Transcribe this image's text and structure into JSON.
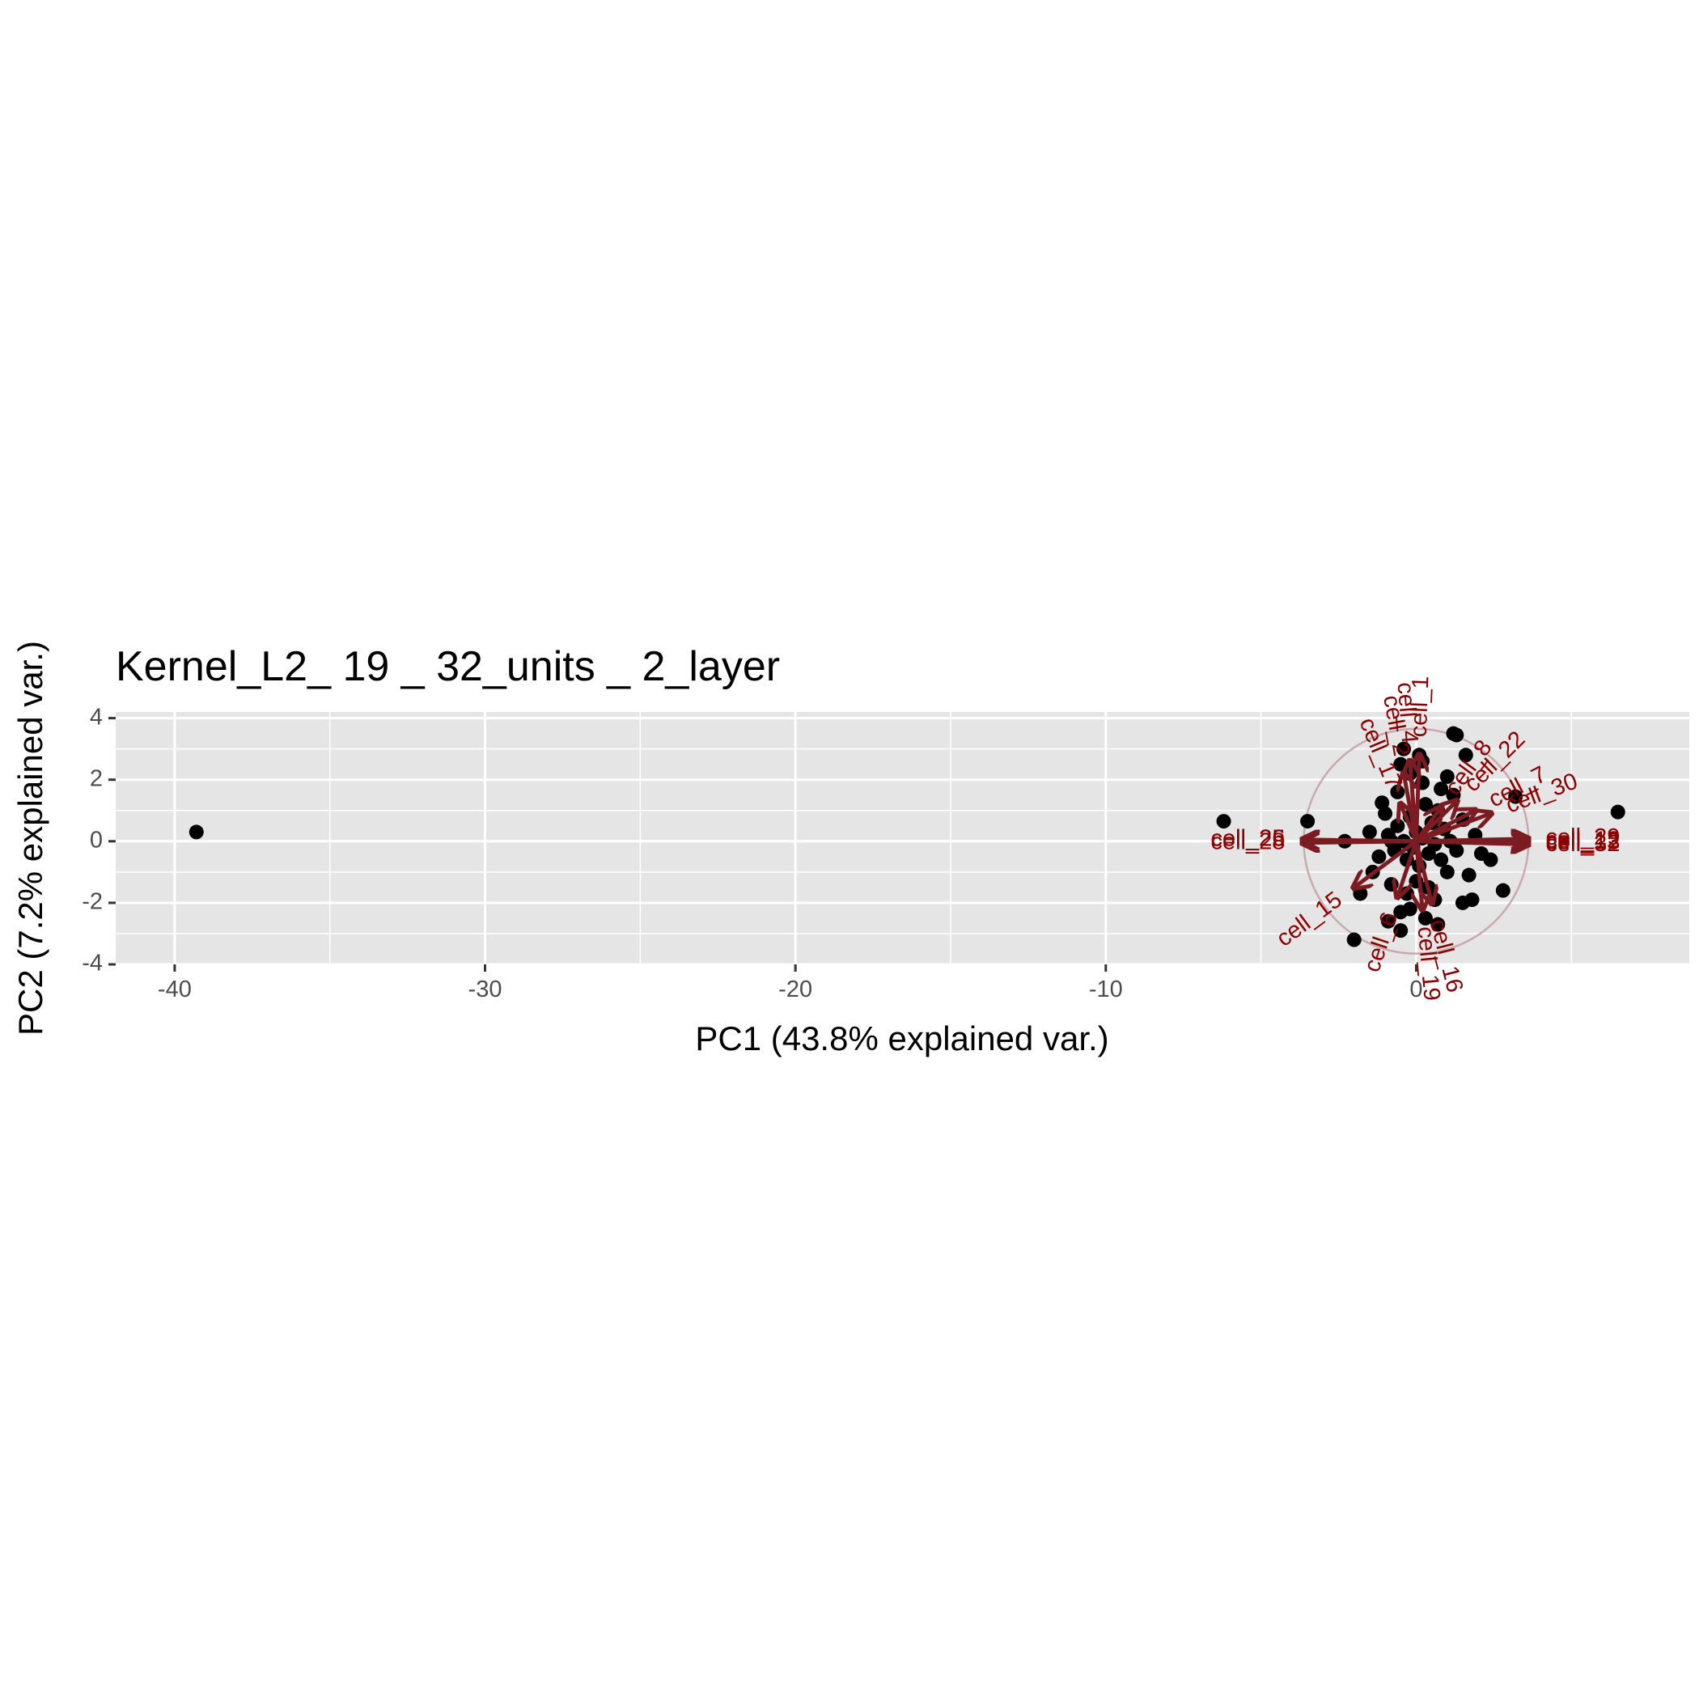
{
  "chart_data": {
    "type": "scatter",
    "title": "Kernel_L2_ 19 _ 32_units _ 2_layer",
    "xlabel": "PC1 (43.8% explained var.)",
    "ylabel": "PC2 (7.2% explained var.)",
    "xlim": [
      -41.9,
      8.8
    ],
    "ylim": [
      -4.0,
      4.2
    ],
    "x_ticks": [
      -40,
      -30,
      -20,
      -10,
      0
    ],
    "x_tick_labels": [
      "-40",
      "-30",
      "-20",
      "-10",
      "0"
    ],
    "y_ticks": [
      -4,
      -2,
      0,
      2,
      4
    ],
    "y_tick_labels": [
      "-4",
      "-2",
      "0",
      "2",
      "4"
    ],
    "grid": true,
    "colors": {
      "panel_background": "#e5e5e5",
      "grid": "#ffffff",
      "points": "#000000",
      "vectors": "#7b1c23",
      "vector_labels": "#8b0000",
      "circle": "#c9a9ae"
    },
    "circle": {
      "center": [
        0,
        0
      ],
      "radius": 3.65
    },
    "points": [
      {
        "x": -39.3,
        "y": 0.3
      },
      {
        "x": -6.2,
        "y": 0.65
      },
      {
        "x": -3.5,
        "y": 0.65
      },
      {
        "x": -2.3,
        "y": 0.0
      },
      {
        "x": -1.8,
        "y": -1.7
      },
      {
        "x": -2.0,
        "y": -3.2
      },
      {
        "x": -1.1,
        "y": 1.25
      },
      {
        "x": 1.2,
        "y": 3.5
      },
      {
        "x": 1.3,
        "y": 3.45
      },
      {
        "x": 1.6,
        "y": 2.8
      },
      {
        "x": -0.4,
        "y": 3.0
      },
      {
        "x": 0.2,
        "y": 2.6
      },
      {
        "x": -0.2,
        "y": 2.2
      },
      {
        "x": 1.0,
        "y": 2.1
      },
      {
        "x": 3.2,
        "y": 1.45
      },
      {
        "x": 6.5,
        "y": 0.95
      },
      {
        "x": -0.5,
        "y": -2.3
      },
      {
        "x": -0.9,
        "y": -2.6
      },
      {
        "x": -0.5,
        "y": -2.9
      },
      {
        "x": 0.3,
        "y": -2.5
      },
      {
        "x": 0.6,
        "y": -1.9
      },
      {
        "x": 1.0,
        "y": -1.0
      },
      {
        "x": 1.5,
        "y": -2.0
      },
      {
        "x": 1.8,
        "y": -1.9
      },
      {
        "x": 2.8,
        "y": -1.6
      },
      {
        "x": 2.1,
        "y": -0.4
      },
      {
        "x": 2.4,
        "y": -0.6
      },
      {
        "x": -1.4,
        "y": -1.0
      },
      {
        "x": -1.2,
        "y": -0.5
      },
      {
        "x": -0.9,
        "y": 0.2
      },
      {
        "x": -0.7,
        "y": -0.3
      },
      {
        "x": -0.6,
        "y": 0.5
      },
      {
        "x": -0.4,
        "y": 0.0
      },
      {
        "x": -0.3,
        "y": -0.6
      },
      {
        "x": -0.2,
        "y": 0.8
      },
      {
        "x": -0.1,
        "y": -0.2
      },
      {
        "x": 0.0,
        "y": 0.3
      },
      {
        "x": 0.1,
        "y": -0.8
      },
      {
        "x": 0.2,
        "y": 0.1
      },
      {
        "x": 0.3,
        "y": 1.2
      },
      {
        "x": 0.4,
        "y": -0.4
      },
      {
        "x": 0.5,
        "y": 0.6
      },
      {
        "x": 0.6,
        "y": -0.1
      },
      {
        "x": 0.7,
        "y": 1.0
      },
      {
        "x": 0.8,
        "y": -0.6
      },
      {
        "x": 0.9,
        "y": 0.4
      },
      {
        "x": 1.1,
        "y": 0.0
      },
      {
        "x": 1.2,
        "y": 1.5
      },
      {
        "x": 1.3,
        "y": -0.3
      },
      {
        "x": 1.5,
        "y": 0.7
      },
      {
        "x": 1.7,
        "y": -1.1
      },
      {
        "x": -0.8,
        "y": -1.4
      },
      {
        "x": -0.6,
        "y": 1.6
      },
      {
        "x": -0.3,
        "y": -1.7
      },
      {
        "x": 0.0,
        "y": -1.3
      },
      {
        "x": 0.2,
        "y": 1.9
      },
      {
        "x": 0.4,
        "y": -1.5
      },
      {
        "x": -1.0,
        "y": 0.9
      },
      {
        "x": -0.5,
        "y": 2.5
      },
      {
        "x": 0.1,
        "y": 2.8
      },
      {
        "x": -1.5,
        "y": 0.3
      },
      {
        "x": 0.8,
        "y": 1.7
      },
      {
        "x": -0.2,
        "y": -2.2
      },
      {
        "x": 0.7,
        "y": -2.7
      },
      {
        "x": -0.8,
        "y": 0.0
      },
      {
        "x": 1.9,
        "y": 0.2
      }
    ],
    "loadings": [
      {
        "label": "cell_26",
        "x": -3.65,
        "y": 0.05
      },
      {
        "label": "cell_25",
        "x": -3.65,
        "y": 0.05
      },
      {
        "label": "cell_28",
        "x": -3.65,
        "y": -0.05
      },
      {
        "label": "cell_29",
        "x": 3.6,
        "y": 0.08
      },
      {
        "label": "cell_12",
        "x": 3.6,
        "y": 0.0
      },
      {
        "label": "cell_13",
        "x": 3.6,
        "y": -0.05
      },
      {
        "label": "cell_32",
        "x": 3.6,
        "y": -0.1
      },
      {
        "label": "cell_30",
        "x": 2.4,
        "y": 0.9
      },
      {
        "label": "cell_7",
        "x": 1.9,
        "y": 1.0
      },
      {
        "label": "cell_22",
        "x": 1.3,
        "y": 1.3
      },
      {
        "label": "cell_8",
        "x": 0.8,
        "y": 1.1
      },
      {
        "label": "cell_17",
        "x": -0.5,
        "y": 1.2
      },
      {
        "label": "cell_2",
        "x": -0.4,
        "y": 2.2
      },
      {
        "label": "cell_4",
        "x": -0.2,
        "y": 2.6
      },
      {
        "label": "cell_1",
        "x": 0.1,
        "y": 2.8
      },
      {
        "label": "cell_15",
        "x": -2.0,
        "y": -1.5
      },
      {
        "label": "cell_6",
        "x": -0.6,
        "y": -1.8
      },
      {
        "label": "cell_16",
        "x": 0.5,
        "y": -2.0
      },
      {
        "label": "cell_19",
        "x": 0.2,
        "y": -2.2
      }
    ]
  }
}
